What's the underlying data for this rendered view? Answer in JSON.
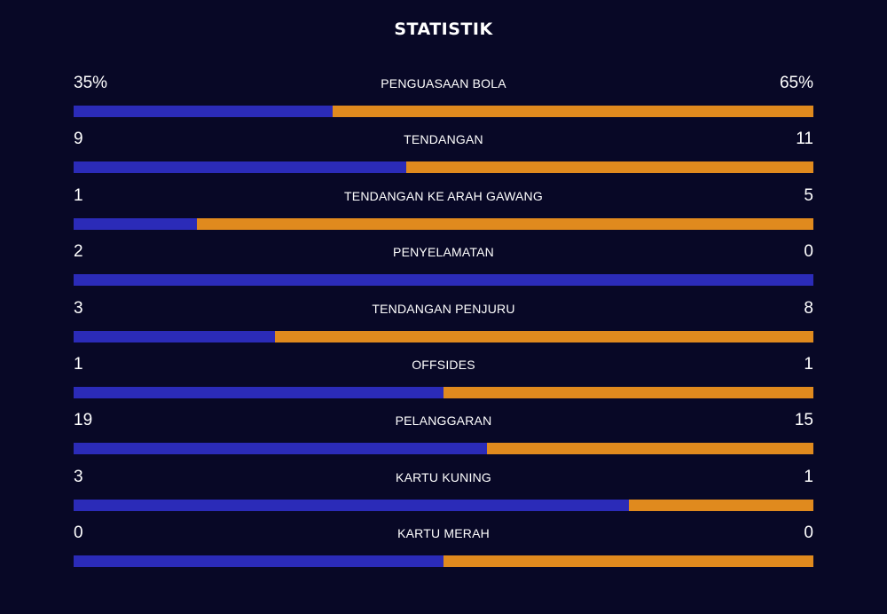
{
  "title": "STATISTIK",
  "colors": {
    "background": "#080826",
    "home": "#2b2bb8",
    "away": "#e08a1e"
  },
  "stats": [
    {
      "label": "PENGUASAAN BOLA",
      "home": "35%",
      "away": "65%",
      "home_share": 0.35
    },
    {
      "label": "TENDANGAN",
      "home": "9",
      "away": "11",
      "home_share": 0.45
    },
    {
      "label": "TENDANGAN KE ARAH GAWANG",
      "home": "1",
      "away": "5",
      "home_share": 0.1667
    },
    {
      "label": "PENYELAMATAN",
      "home": "2",
      "away": "0",
      "home_share": 1.0
    },
    {
      "label": "TENDANGAN PENJURU",
      "home": "3",
      "away": "8",
      "home_share": 0.2727
    },
    {
      "label": "OFFSIDES",
      "home": "1",
      "away": "1",
      "home_share": 0.5
    },
    {
      "label": "PELANGGARAN",
      "home": "19",
      "away": "15",
      "home_share": 0.5588
    },
    {
      "label": "KARTU KUNING",
      "home": "3",
      "away": "1",
      "home_share": 0.75
    },
    {
      "label": "KARTU MERAH",
      "home": "0",
      "away": "0",
      "home_share": 0.5
    }
  ]
}
